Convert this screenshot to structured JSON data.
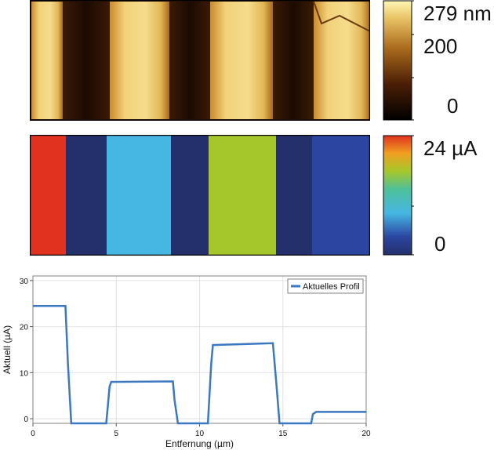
{
  "topo": {
    "colorbar_max_label": "279 nm",
    "colorbar_mid_label": "200",
    "colorbar_min_label": "0",
    "colors": {
      "dark": "#1a0a00",
      "mid": "#8a4a10",
      "light": "#f2d27a",
      "top": "#fff6b4"
    }
  },
  "current_map": {
    "colorbar_max_label": "24 µA",
    "colorbar_min_label": "0",
    "stripes": [
      {
        "color": "#e0321f",
        "level_uA": 24
      },
      {
        "color": "#23306c",
        "level_uA": 0
      },
      {
        "color": "#45b7e2",
        "level_uA": 8
      },
      {
        "color": "#23306c",
        "level_uA": 0
      },
      {
        "color": "#a5c72b",
        "level_uA": 16
      },
      {
        "color": "#23306c",
        "level_uA": 0
      },
      {
        "color": "#2c45a0",
        "level_uA": 1.5
      }
    ]
  },
  "chart_data": {
    "type": "line",
    "xlabel": "Entfernung (µm)",
    "ylabel": "Aktuell (µA)",
    "xlim": [
      0,
      20
    ],
    "ylim": [
      -1,
      31
    ],
    "xticks": [
      "0",
      "5",
      "10",
      "15",
      "20"
    ],
    "yticks": [
      "0",
      "10",
      "20",
      "30"
    ],
    "grid": true,
    "legend_position": "top-right",
    "series": [
      {
        "name": "Aktuelles Profil",
        "color": "#3b78c0",
        "x": [
          0,
          1.95,
          2.1,
          2.3,
          4.4,
          4.6,
          4.7,
          8.4,
          8.5,
          8.7,
          10.5,
          10.7,
          10.8,
          14.4,
          14.6,
          14.8,
          16.7,
          16.8,
          17.0,
          20
        ],
        "y": [
          24.5,
          24.5,
          12,
          -1,
          -1,
          7,
          8,
          8.1,
          4,
          -1,
          -1,
          12,
          16,
          16.4,
          8,
          -1,
          -1,
          1,
          1.5,
          1.5
        ]
      }
    ]
  }
}
